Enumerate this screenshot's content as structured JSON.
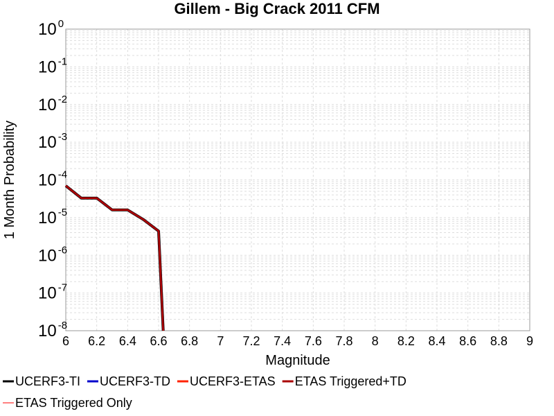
{
  "chart_data": {
    "type": "line",
    "title": "Gillem - Big Crack 2011 CFM",
    "xlabel": "Magnitude",
    "ylabel": "1 Month Probability",
    "xlim": [
      6,
      9
    ],
    "ylim": [
      1e-08,
      1
    ],
    "yscale": "log",
    "grid": true,
    "legend_position": "bottom",
    "x_ticks": [
      "6",
      "6.2",
      "6.4",
      "6.6",
      "6.8",
      "7",
      "7.2",
      "7.4",
      "7.6",
      "7.8",
      "8",
      "8.2",
      "8.4",
      "8.6",
      "8.8",
      "9"
    ],
    "y_ticks": [
      {
        "base": "10",
        "exp": "0"
      },
      {
        "base": "10",
        "exp": "-1"
      },
      {
        "base": "10",
        "exp": "-2"
      },
      {
        "base": "10",
        "exp": "-3"
      },
      {
        "base": "10",
        "exp": "-4"
      },
      {
        "base": "10",
        "exp": "-5"
      },
      {
        "base": "10",
        "exp": "-6"
      },
      {
        "base": "10",
        "exp": "-7"
      },
      {
        "base": "10",
        "exp": "-8"
      }
    ],
    "series": [
      {
        "name": "UCERF3-TI",
        "color": "#000000",
        "x": [
          6.0,
          6.1,
          6.2,
          6.3,
          6.4,
          6.5,
          6.6,
          6.63
        ],
        "y": [
          7e-05,
          3.3e-05,
          3.3e-05,
          1.6e-05,
          1.6e-05,
          9e-06,
          4.4e-06,
          1e-08
        ]
      },
      {
        "name": "UCERF3-TD",
        "color": "#0000cc",
        "x": [
          6.0,
          6.1,
          6.2,
          6.3,
          6.4,
          6.5,
          6.6,
          6.63
        ],
        "y": [
          7e-05,
          3.3e-05,
          3.3e-05,
          1.6e-05,
          1.6e-05,
          9e-06,
          4.4e-06,
          1e-08
        ]
      },
      {
        "name": "UCERF3-ETAS",
        "color": "#ff2200",
        "x": [
          6.0,
          6.1,
          6.2,
          6.3,
          6.4,
          6.5,
          6.6,
          6.63
        ],
        "y": [
          7e-05,
          3.3e-05,
          3.3e-05,
          1.6e-05,
          1.6e-05,
          9e-06,
          4.4e-06,
          1e-08
        ]
      },
      {
        "name": "ETAS Triggered+TD",
        "color": "#aa0000",
        "x": [
          6.0,
          6.1,
          6.2,
          6.3,
          6.4,
          6.5,
          6.6,
          6.63
        ],
        "y": [
          7e-05,
          3.3e-05,
          3.3e-05,
          1.6e-05,
          1.6e-05,
          9e-06,
          4.4e-06,
          1e-08
        ]
      },
      {
        "name": "ETAS Triggered Only",
        "color": "#ff8080",
        "x": [],
        "y": []
      }
    ]
  }
}
